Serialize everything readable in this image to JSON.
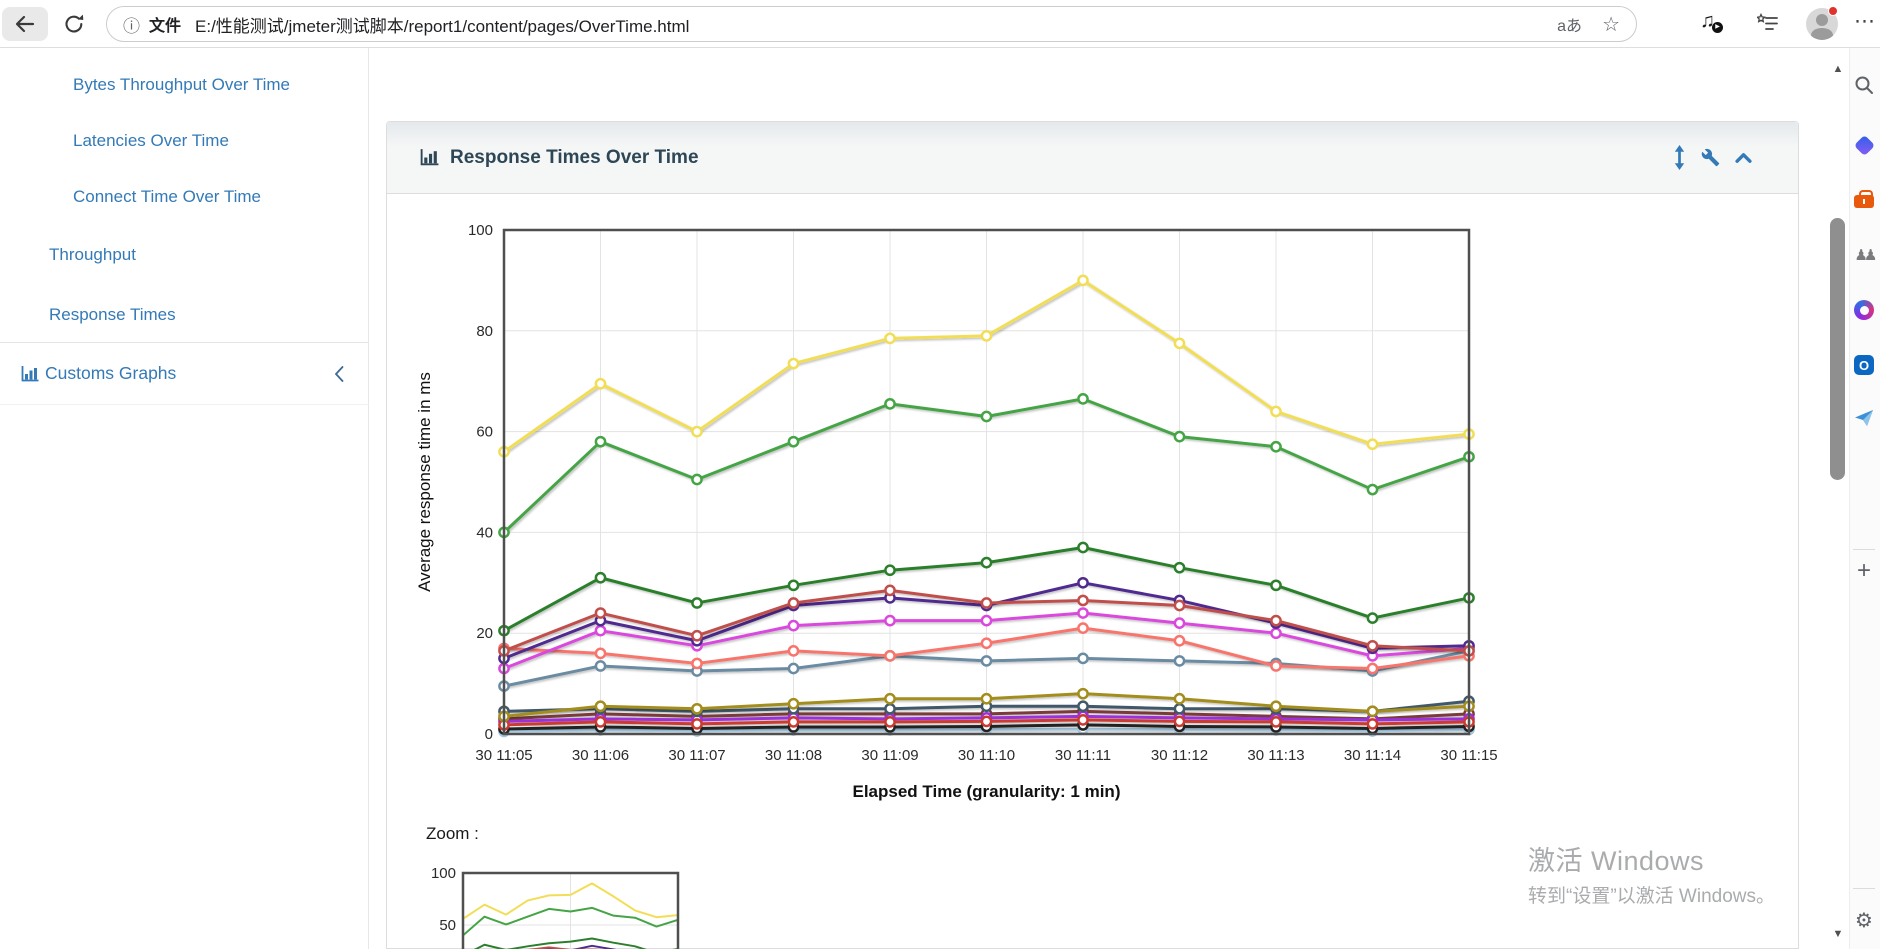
{
  "browser": {
    "address": {
      "scheme_label": "文件",
      "url": "E:/性能测试/jmeter测试脚本/report1/content/pages/OverTime.html"
    },
    "icons": {
      "info": "ⓘ",
      "translate": "aあ",
      "favorite_star": "☆",
      "media_note": "♫",
      "media_play": "▶",
      "menu_dots": "⋯"
    }
  },
  "sidebar": {
    "items": [
      {
        "label": "Bytes Throughput Over Time"
      },
      {
        "label": "Latencies Over Time"
      },
      {
        "label": "Connect Time Over Time"
      },
      {
        "label": "Throughput"
      },
      {
        "label": "Response Times"
      },
      {
        "label": "Customs Graphs"
      }
    ]
  },
  "panel": {
    "title": "Response Times Over Time"
  },
  "zoom_section": {
    "label": "Zoom :"
  },
  "watermark": {
    "line1": "激活 Windows",
    "line2": "转到“设置”以激活 Windows。"
  },
  "rail_icons": {
    "pawns": "♟♟",
    "outlook": "O",
    "plus": "+",
    "gear": "⚙",
    "scroll_up": "▲",
    "scroll_down": "▼"
  },
  "colors": {
    "link_blue": "#337ab7",
    "panel_title": "#2e4756",
    "plot_border": "#4f4f4f",
    "grid": "#e3e3e3"
  },
  "chart_data": {
    "type": "line",
    "title": "Response Times Over Time",
    "xlabel": "Elapsed Time (granularity: 1 min)",
    "ylabel": "Average response time in ms",
    "ylim": [
      0,
      100
    ],
    "yticks": [
      0,
      20,
      40,
      60,
      80,
      100
    ],
    "grid": true,
    "legend_position": "none",
    "categories": [
      "30 11:05",
      "30 11:06",
      "30 11:07",
      "30 11:08",
      "30 11:09",
      "30 11:10",
      "30 11:11",
      "30 11:12",
      "30 11:13",
      "30 11:14",
      "30 11:15"
    ],
    "series": [
      {
        "color": "#f2de56",
        "values": [
          56,
          69.5,
          60,
          73.5,
          78.5,
          79,
          90,
          77.5,
          64,
          57.5,
          59.5
        ]
      },
      {
        "color": "#45a445",
        "values": [
          40,
          58,
          50.5,
          58,
          65.5,
          63,
          66.5,
          59,
          57,
          48.5,
          55
        ]
      },
      {
        "color": "#2c7f2c",
        "values": [
          20.5,
          31,
          26,
          29.5,
          32.5,
          34,
          37,
          33,
          29.5,
          23,
          27
        ]
      },
      {
        "color": "#c04f4c",
        "values": [
          16.5,
          24,
          19.5,
          26,
          28.5,
          26,
          26.5,
          25.5,
          22.5,
          17.5,
          16.5
        ]
      },
      {
        "color": "#4f2b8f",
        "values": [
          15,
          22.5,
          18.5,
          25.5,
          27,
          25.5,
          30,
          26.5,
          22,
          17,
          17.5
        ]
      },
      {
        "color": "#da48dd",
        "values": [
          13,
          20.5,
          17.5,
          21.5,
          22.5,
          22.5,
          24,
          22,
          20,
          15.5,
          17
        ]
      },
      {
        "color": "#f8746c",
        "values": [
          17,
          16,
          14,
          16.5,
          15.5,
          18,
          21,
          18.5,
          13.5,
          13,
          15.5
        ]
      },
      {
        "color": "#6a8ba2",
        "values": [
          9.5,
          13.5,
          12.5,
          13,
          15.5,
          14.5,
          15,
          14.5,
          14,
          12.5,
          16.5
        ]
      },
      {
        "color": "#a38d1d",
        "values": [
          3.5,
          5.5,
          5,
          6,
          7,
          7,
          8,
          7,
          5.5,
          4.5,
          5.5
        ]
      },
      {
        "color": "#41596a",
        "values": [
          4.5,
          5,
          4.5,
          5,
          5,
          5.5,
          5.5,
          5,
          5,
          4.5,
          6.5
        ]
      },
      {
        "color": "#7c3a3a",
        "values": [
          3,
          4,
          3.5,
          4,
          4,
          4,
          4.5,
          4,
          3.5,
          3,
          4
        ]
      },
      {
        "color": "#9b30d9",
        "values": [
          2.5,
          3,
          2.8,
          3.2,
          3,
          3.2,
          3.5,
          3.2,
          3,
          2.8,
          3
        ]
      },
      {
        "color": "#cb3a31",
        "values": [
          1.8,
          2.4,
          2,
          2.4,
          2.4,
          2.5,
          2.8,
          2.5,
          2.4,
          2,
          2.4
        ]
      },
      {
        "color": "#222222",
        "values": [
          1,
          1.4,
          1.1,
          1.4,
          1.4,
          1.5,
          1.8,
          1.5,
          1.4,
          1.1,
          1.5
        ]
      },
      {
        "color": "#a5c8e0",
        "values": [
          0.5,
          0.8,
          0.6,
          0.8,
          0.8,
          0.9,
          1,
          0.9,
          0.8,
          0.6,
          0.9
        ]
      }
    ],
    "zoom_overview": {
      "yticks": [
        100,
        50
      ]
    }
  }
}
